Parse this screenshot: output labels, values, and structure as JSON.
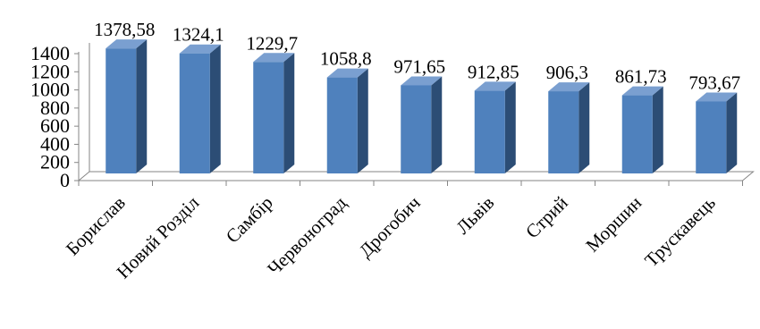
{
  "chart_data": {
    "type": "bar",
    "style": "3d-column",
    "categories": [
      "Борислав",
      "Новий Розділ",
      "Самбір",
      "Червоноград",
      "Дрогобич",
      "Львів",
      "Стрий",
      "Моршин",
      "Трускавець"
    ],
    "values": [
      1378.58,
      1324.1,
      1229.7,
      1058.8,
      971.65,
      912.85,
      906.3,
      861.73,
      793.67
    ],
    "data_labels": [
      "1378,58",
      "1324,1",
      "1229,7",
      "1058,8",
      "971,65",
      "912,85",
      "906,3",
      "861,73",
      "793,67"
    ],
    "yticks": [
      "0",
      "200",
      "400",
      "600",
      "800",
      "1000",
      "1200",
      "1400"
    ],
    "ylim": [
      0,
      1400
    ],
    "grid": false,
    "legend": "none",
    "colors": {
      "bar_front": "#4F81BD",
      "bar_side": "#2C4D75",
      "bar_top": "#7A9FD0",
      "axis": "#868686"
    }
  }
}
